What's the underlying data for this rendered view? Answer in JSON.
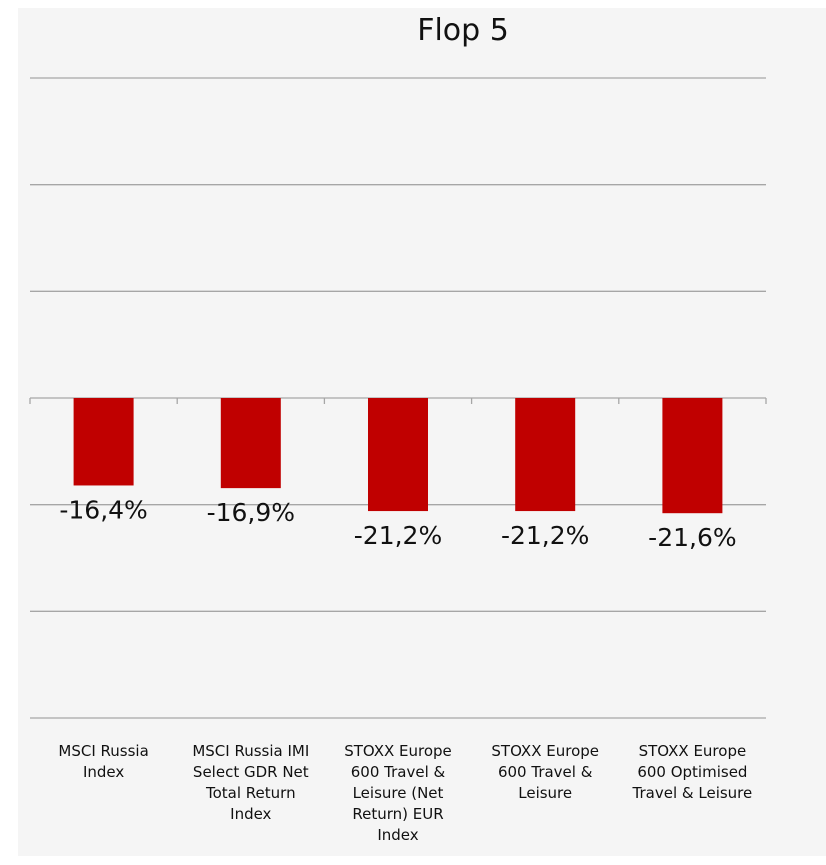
{
  "chart_data": {
    "type": "bar",
    "title": "Flop 5",
    "categories": [
      [
        "MSCI Russia",
        "Index"
      ],
      [
        "MSCI Russia IMI",
        "Select GDR Net",
        "Total Return",
        "Index"
      ],
      [
        "STOXX Europe",
        "600 Travel &",
        "Leisure (Net",
        "Return) EUR",
        "Index"
      ],
      [
        "STOXX Europe",
        "600 Travel &",
        "Leisure"
      ],
      [
        "STOXX Europe",
        "600 Optimised",
        "Travel & Leisure"
      ]
    ],
    "values": [
      -16.4,
      -16.9,
      -21.2,
      -21.2,
      -21.6
    ],
    "value_labels": [
      "-16,4%",
      "-16,9%",
      "-21,2%",
      "-21,2%",
      "-21,6%"
    ],
    "xlabel": "",
    "ylabel": "",
    "ylim": [
      -60,
      60
    ],
    "grid": true,
    "legend": "none",
    "bar_color": "#c00000",
    "grid_color": "#a6a6a6"
  }
}
